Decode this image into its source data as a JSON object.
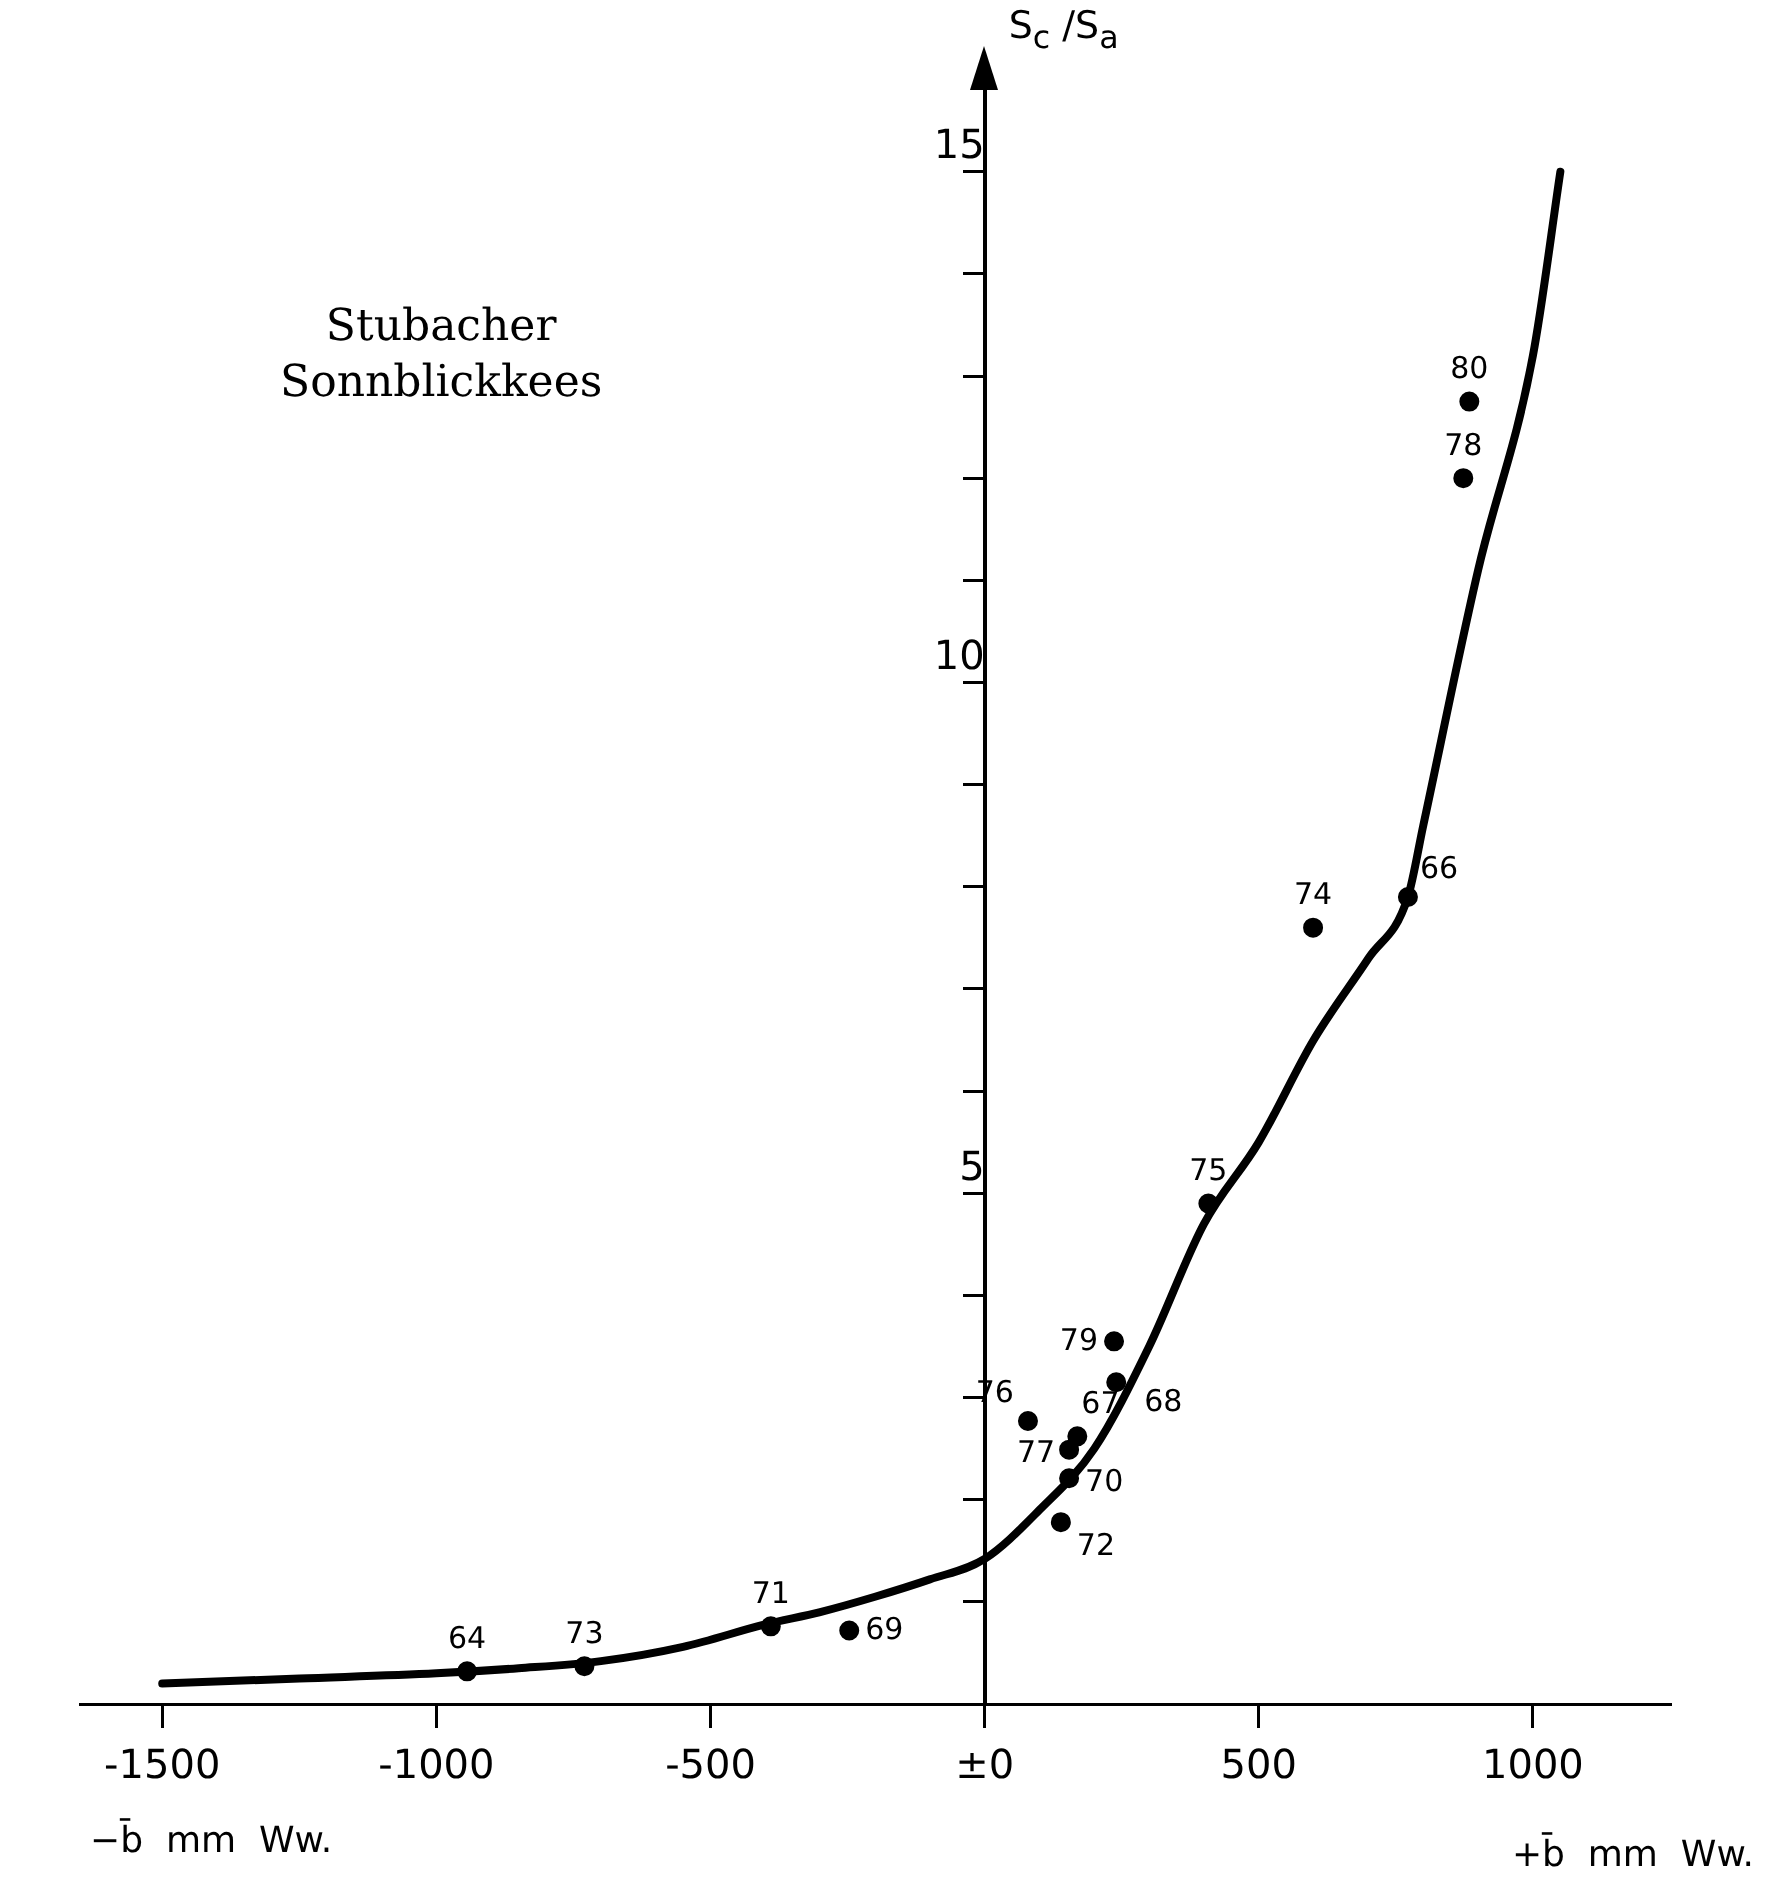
{
  "chart_data": {
    "type": "scatter",
    "title": "Stubacher\nSonnblickkees",
    "xlabel": "+b̄  mm  Ww.",
    "ylabel": "S$_{c}$ /S$_{a}$",
    "xlim": [
      -1650,
      1250
    ],
    "ylim": [
      0,
      15.8
    ],
    "xticks": [
      -1500,
      -1000,
      -500,
      {
        "value": 0,
        "label": "±0"
      },
      500,
      1000
    ],
    "yticks": [
      {
        "value": 1,
        "label": null
      },
      {
        "value": 2,
        "label": null
      },
      {
        "value": 3,
        "label": null
      },
      {
        "value": 4,
        "label": null
      },
      5,
      {
        "value": 6,
        "label": null
      },
      {
        "value": 7,
        "label": null
      },
      {
        "value": 8,
        "label": null
      },
      {
        "value": 9,
        "label": null
      },
      10,
      {
        "value": 11,
        "label": null
      },
      {
        "value": 12,
        "label": null
      },
      {
        "value": 13,
        "label": null
      },
      {
        "value": 14,
        "label": null
      },
      15
    ],
    "grid": false,
    "legend": false,
    "series": [
      {
        "type": "line",
        "color": "#000000",
        "marker": "none",
        "line_style": "solid",
        "x": [
          -1500,
          -1250,
          -1000,
          -850,
          -700,
          -550,
          -400,
          -300,
          -200,
          -100,
          0,
          100,
          200,
          300,
          400,
          500,
          600,
          700,
          772,
          800,
          900,
          1000,
          1050
        ],
        "values": [
          0.2,
          0.25,
          0.3,
          0.35,
          0.42,
          0.56,
          0.78,
          0.9,
          1.05,
          1.22,
          1.42,
          1.9,
          2.5,
          3.5,
          4.7,
          5.5,
          6.5,
          7.3,
          7.9,
          8.6,
          11.1,
          13.2,
          15
        ]
      },
      {
        "type": "scatter",
        "color": "#000000",
        "marker": "circle",
        "x": [
          884,
          873,
          772,
          599,
          408,
          236,
          240,
          79,
          169,
          154,
          154,
          139,
          -390,
          -247,
          -730,
          -944
        ],
        "values": [
          12.75,
          12.0,
          7.9,
          7.6,
          4.9,
          3.55,
          3.15,
          2.77,
          2.62,
          2.49,
          2.21,
          1.78,
          0.76,
          0.72,
          0.37,
          0.32
        ]
      }
    ],
    "annotations": [
      {
        "text": "80",
        "x": 884,
        "y": 12.75
      },
      {
        "text": "78",
        "x": 873,
        "y": 12.0
      },
      {
        "text": "66",
        "x": 772,
        "y": 7.9
      },
      {
        "text": "74",
        "x": 599,
        "y": 7.6
      },
      {
        "text": "75",
        "x": 408,
        "y": 4.9
      },
      {
        "text": "79",
        "x": 236,
        "y": 3.55
      },
      {
        "text": "68",
        "x": 240,
        "y": 3.15
      },
      {
        "text": "76",
        "x": 79,
        "y": 2.77
      },
      {
        "text": "67",
        "x": 169,
        "y": 2.62
      },
      {
        "text": "77",
        "x": 154,
        "y": 2.49
      },
      {
        "text": "70",
        "x": 154,
        "y": 2.21
      },
      {
        "text": "72",
        "x": 139,
        "y": 1.78
      },
      {
        "text": "71",
        "x": -390,
        "y": 0.76
      },
      {
        "text": "69",
        "x": -247,
        "y": 0.72
      },
      {
        "text": "73",
        "x": -730,
        "y": 0.37
      },
      {
        "text": "64",
        "x": -944,
        "y": 0.32
      },
      "−b̄  mm  Ww."
    ]
  }
}
